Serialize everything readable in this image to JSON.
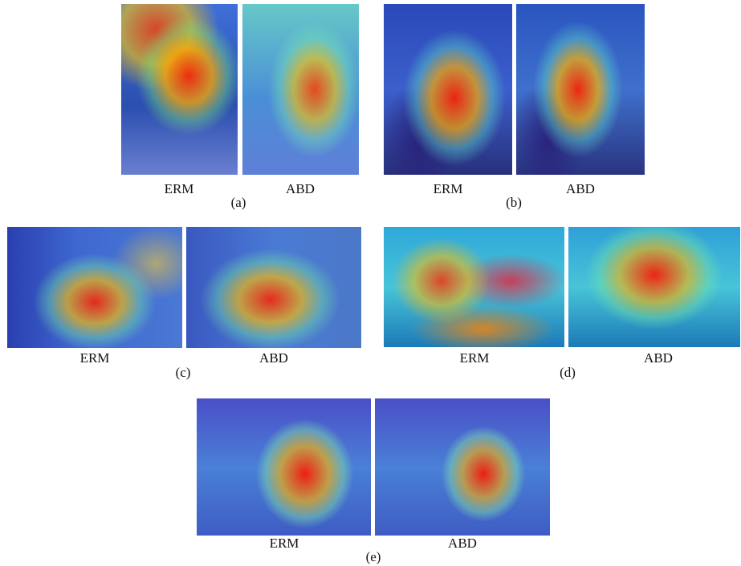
{
  "panels": [
    {
      "label": "(a)",
      "images": [
        "ERM",
        "ABD"
      ]
    },
    {
      "label": "(b)",
      "images": [
        "ERM",
        "ABD"
      ]
    },
    {
      "label": "(c)",
      "images": [
        "ERM",
        "ABD"
      ]
    },
    {
      "label": "(d)",
      "images": [
        "ERM",
        "ABD"
      ]
    },
    {
      "label": "(e)",
      "images": [
        "ERM",
        "ABD"
      ]
    }
  ]
}
